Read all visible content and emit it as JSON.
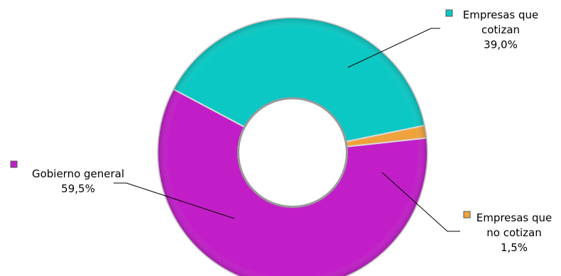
{
  "chart_data": {
    "type": "pie",
    "donut": true,
    "title": "",
    "slices": [
      {
        "label": [
          "Empresas que",
          "cotizan"
        ],
        "value_text": "39,0%",
        "value": 39.0,
        "color": "#0bc8c4"
      },
      {
        "label": [
          "Empresas que",
          "no cotizan"
        ],
        "value_text": "1,5%",
        "value": 1.5,
        "color": "#f0a23c"
      },
      {
        "label": [
          "Gobierno general"
        ],
        "value_text": "59,5%",
        "value": 59.5,
        "color": "#c11ec8"
      }
    ],
    "legend_position": "labels beside slices with leader lines"
  }
}
